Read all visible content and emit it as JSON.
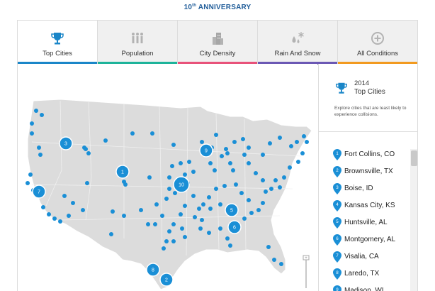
{
  "header": {
    "anniv_prefix": "10",
    "anniv_sup": "th",
    "anniv_suffix": " ANNIVERSARY"
  },
  "tabs": [
    {
      "label": "Top Cities",
      "icon": "trophy-icon",
      "color": "#1a86c8",
      "active": true
    },
    {
      "label": "Population",
      "icon": "people-icon",
      "color": "#1db39a"
    },
    {
      "label": "City Density",
      "icon": "buildings-icon",
      "color": "#e8527a"
    },
    {
      "label": "Rain And Snow",
      "icon": "rain-snow-icon",
      "color": "#6b58b4"
    },
    {
      "label": "All Conditions",
      "icon": "plus-circle-icon",
      "color": "#f29a1f"
    }
  ],
  "sidebar": {
    "year": "2014",
    "title": "Top Cities",
    "description": "Explore cities that are least likely to experience collisions.",
    "ranks": [
      {
        "num": "1",
        "name": "Fort Collins, CO"
      },
      {
        "num": "2",
        "name": "Brownsville, TX"
      },
      {
        "num": "3",
        "name": "Boise, ID"
      },
      {
        "num": "4",
        "name": "Kansas City, KS"
      },
      {
        "num": "5",
        "name": "Huntsville, AL"
      },
      {
        "num": "6",
        "name": "Montgomery, AL"
      },
      {
        "num": "7",
        "name": "Visalia, CA"
      },
      {
        "num": "8",
        "name": "Laredo, TX"
      },
      {
        "num": "9",
        "name": "Madison, WI"
      }
    ]
  },
  "map": {
    "marker_color": "#1a8fd6",
    "ranked_markers": [
      {
        "num": "1"
      },
      {
        "num": "2"
      },
      {
        "num": "3"
      },
      {
        "num": "5"
      },
      {
        "num": "6"
      },
      {
        "num": "7"
      },
      {
        "num": "8"
      },
      {
        "num": "9"
      },
      {
        "num": "10"
      }
    ]
  }
}
